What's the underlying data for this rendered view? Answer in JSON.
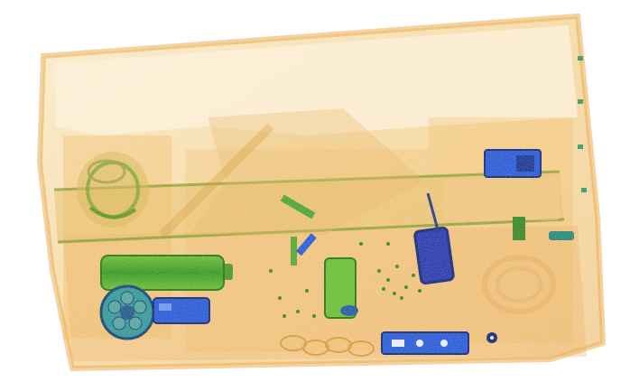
{
  "image": {
    "kind": "x-ray-baggage-scan",
    "palette": {
      "background": "#ffffff",
      "organic_light": "#f7e0b0",
      "organic_mid": "#f0b55a",
      "organic_dark": "#d9892a",
      "mixed_green": "#7fbf3a",
      "mixed_dark": "#3f8a2a",
      "metal_blue": "#2f5fd6",
      "metal_dark": "#1d2f7a"
    },
    "objects": [
      {
        "name": "suitcase-body",
        "material": "organic"
      },
      {
        "name": "handle-bar",
        "material": "mixed"
      },
      {
        "name": "cylinder-battery",
        "material": "mixed"
      },
      {
        "name": "circular-fan",
        "material": "metal"
      },
      {
        "name": "small-device-blue",
        "material": "metal"
      },
      {
        "name": "phone-device",
        "material": "metal"
      },
      {
        "name": "bottle",
        "material": "mixed"
      },
      {
        "name": "top-right-device",
        "material": "metal"
      },
      {
        "name": "control-panel",
        "material": "metal"
      },
      {
        "name": "coiled-cable",
        "material": "organic"
      },
      {
        "name": "scattered-items",
        "material": "mixed"
      }
    ]
  }
}
